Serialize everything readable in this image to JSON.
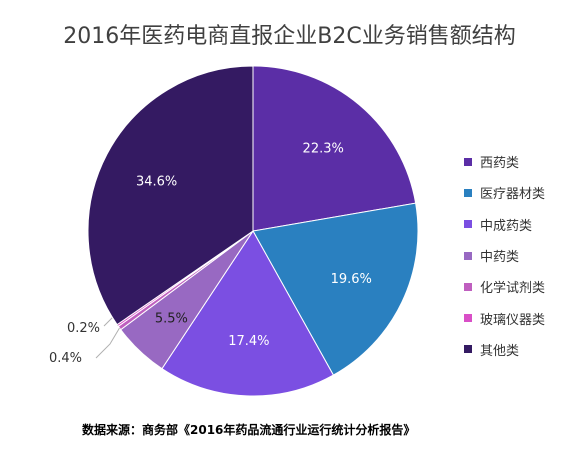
{
  "title": "2016年医药电商直报企业B2C业务销售额结构",
  "source": "数据来源：商务部《2016年药品流通行业运行统计分析报告》",
  "chart_data": {
    "type": "pie",
    "title": "2016年医药电商直报企业B2C业务销售额结构",
    "legend_position": "right",
    "slices": [
      {
        "name": "西药类",
        "value": 22.3,
        "label": "22.3%",
        "color": "#5b2ea6"
      },
      {
        "name": "医疗器材类",
        "value": 19.6,
        "label": "19.6%",
        "color": "#2a80c0"
      },
      {
        "name": "中成药类",
        "value": 17.4,
        "label": "17.4%",
        "color": "#7b4fe2"
      },
      {
        "name": "中药类",
        "value": 5.5,
        "label": "5.5%",
        "color": "#9869c2"
      },
      {
        "name": "化学试剂类",
        "value": 0.4,
        "label": "0.4%",
        "color": "#bf5fbf"
      },
      {
        "name": "玻璃仪器类",
        "value": 0.2,
        "label": "0.2%",
        "color": "#d94fc7"
      },
      {
        "name": "其他类",
        "value": 34.6,
        "label": "34.6%",
        "color": "#341a62"
      }
    ]
  }
}
